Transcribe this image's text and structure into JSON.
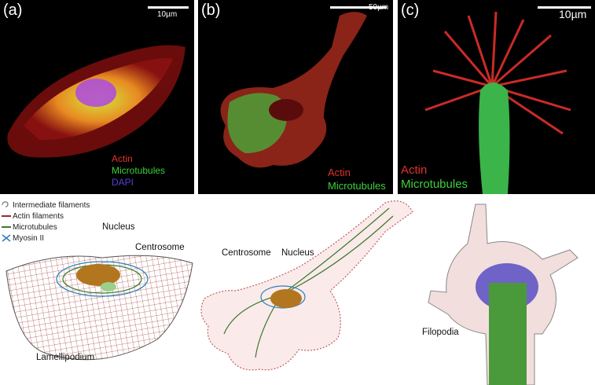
{
  "panels": [
    {
      "letter": "(a)",
      "scale": "10µm",
      "labels": [
        {
          "text": "Actin",
          "color": "#e0322c"
        },
        {
          "text": "Microtubules",
          "color": "#3bd13b"
        },
        {
          "text": "DAPI",
          "color": "#5a3cd6"
        }
      ]
    },
    {
      "letter": "(b)",
      "scale": "50µm",
      "labels": [
        {
          "text": "Actin",
          "color": "#e0322c"
        },
        {
          "text": "Microtubules",
          "color": "#3bd13b"
        }
      ]
    },
    {
      "letter": "(c)",
      "scale": "10µm",
      "labels": [
        {
          "text": "Actin",
          "color": "#e0322c"
        },
        {
          "text": "Microtubules",
          "color": "#3bd13b"
        }
      ]
    }
  ],
  "legend": [
    {
      "label": "Intermediate filaments",
      "icon": "intermediate-filament-icon"
    },
    {
      "label": "Actin filaments",
      "color": "#9b2b2b"
    },
    {
      "label": "Microtubules",
      "color": "#3a7a2e"
    },
    {
      "label": "Myosin II",
      "icon": "myosin-icon",
      "color": "#2f7fb8"
    }
  ],
  "diagram_labels": {
    "nucleus_a": "Nucleus",
    "centrosome_a": "Centrosome",
    "lamellipodium": "Lamellipodium",
    "centrosome_b": "Centrosome",
    "nucleus_b": "Nucleus",
    "filopodia": "Filopodia"
  }
}
